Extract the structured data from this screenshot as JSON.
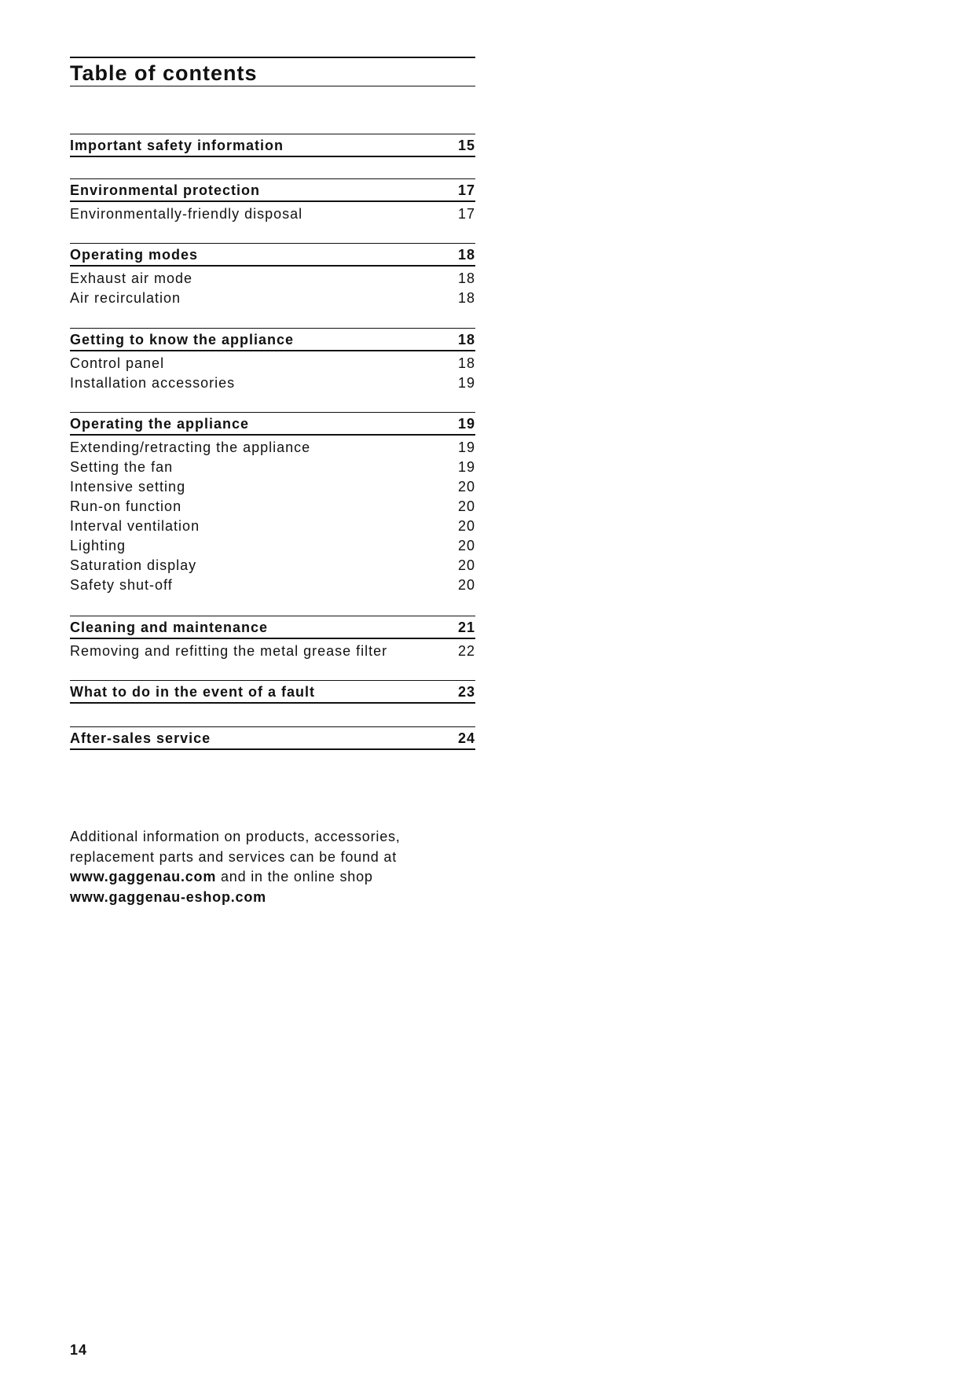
{
  "header": {
    "title": "Table of contents"
  },
  "sections": [
    {
      "title": "Important safety information",
      "page": "15",
      "items": []
    },
    {
      "title": "Environmental protection",
      "page": "17",
      "items": [
        {
          "label": "Environmentally-friendly disposal",
          "page": "17"
        }
      ]
    },
    {
      "title": "Operating modes",
      "page": "18",
      "items": [
        {
          "label": "Exhaust air mode",
          "page": "18"
        },
        {
          "label": "Air recirculation",
          "page": "18"
        }
      ]
    },
    {
      "title": "Getting to know the appliance",
      "page": "18",
      "items": [
        {
          "label": "Control panel",
          "page": "18"
        },
        {
          "label": "Installation accessories",
          "page": "19"
        }
      ]
    },
    {
      "title": "Operating the appliance",
      "page": "19",
      "items": [
        {
          "label": "Extending/retracting the appliance",
          "page": "19"
        },
        {
          "label": "Setting the fan",
          "page": "19"
        },
        {
          "label": "Intensive setting",
          "page": "20"
        },
        {
          "label": "Run-on function",
          "page": "20"
        },
        {
          "label": "Interval ventilation",
          "page": "20"
        },
        {
          "label": "Lighting",
          "page": "20"
        },
        {
          "label": "Saturation display",
          "page": "20"
        },
        {
          "label": "Safety shut-off",
          "page": "20"
        }
      ]
    },
    {
      "title": "Cleaning and maintenance",
      "page": "21",
      "items": [
        {
          "label": "Removing and refitting the metal grease filter",
          "page": "22"
        }
      ]
    },
    {
      "title": "What to do in the event of a fault",
      "page": "23",
      "items": []
    },
    {
      "title": "After-sales service",
      "page": "24",
      "items": []
    }
  ],
  "info": {
    "line1": "Additional information on products, accessories,",
    "line2": "replacement parts and services can be found at",
    "link1": "www.gaggenau.com",
    "line3_rest": " and in the online shop",
    "link2": "www.gaggenau-eshop.com"
  },
  "footer": {
    "page_number": "14"
  }
}
